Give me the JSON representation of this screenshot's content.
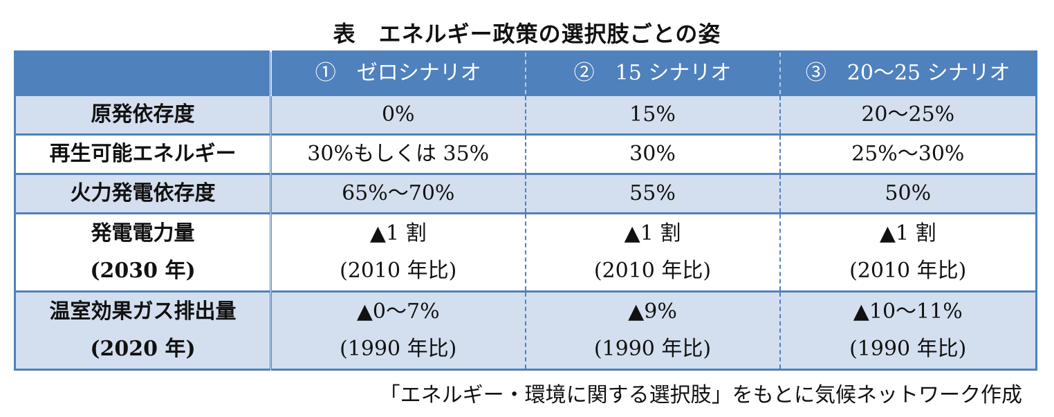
{
  "title": "表　エネルギー政策の選択肢ごとの姿",
  "columns": [
    "",
    "①　ゼロシナリオ",
    "②　15 シナリオ",
    "③　20～25 シナリオ"
  ],
  "rows": [
    {
      "label": [
        "原発依存度"
      ],
      "cells": [
        [
          "0%"
        ],
        [
          "15%"
        ],
        [
          "20～25%"
        ]
      ]
    },
    {
      "label": [
        "再生可能エネルギー"
      ],
      "cells": [
        [
          "30%もしくは 35%"
        ],
        [
          "30%"
        ],
        [
          "25%～30%"
        ]
      ]
    },
    {
      "label": [
        "火力発電依存度"
      ],
      "cells": [
        [
          "65%～70%"
        ],
        [
          "55%"
        ],
        [
          "50%"
        ]
      ]
    },
    {
      "label": [
        "発電電力量",
        "(2030 年)"
      ],
      "cells": [
        [
          "▲1 割",
          "(2010 年比)"
        ],
        [
          "▲1 割",
          "(2010 年比)"
        ],
        [
          "▲1 割",
          "(2010 年比)"
        ]
      ]
    },
    {
      "label": [
        "温室効果ガス排出量",
        "(2020 年)"
      ],
      "cells": [
        [
          "▲0～7%",
          "(1990 年比)"
        ],
        [
          "▲9%",
          "(1990 年比)"
        ],
        [
          "▲10～11%",
          "(1990 年比)"
        ]
      ]
    }
  ],
  "source": "「エネルギー・環境に関する選択肢」をもとに気候ネットワーク作成",
  "colors": {
    "header_bg": "#4f81bd",
    "shade_bg": "#d3dfee",
    "header_text": "#ffffff"
  }
}
